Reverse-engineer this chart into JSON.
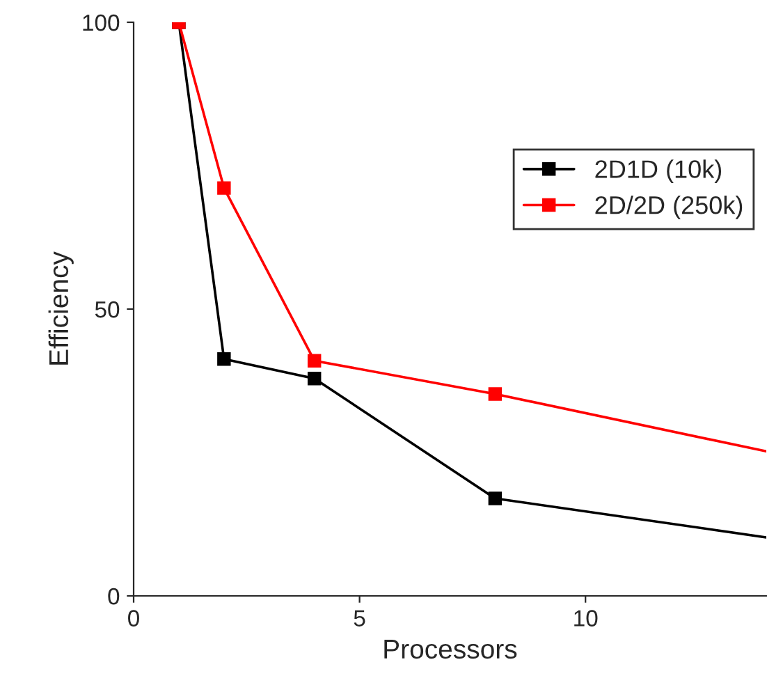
{
  "chart_data": {
    "type": "line",
    "xlabel": "Processors",
    "ylabel": "Efficiency",
    "xlim": [
      0,
      14
    ],
    "xticks": [
      0,
      5,
      10
    ],
    "ylim": [
      0,
      100
    ],
    "yticks": [
      0,
      50,
      100
    ],
    "series": [
      {
        "name": "2D1D (10k)",
        "color": "#000000",
        "x": [
          1,
          2,
          4,
          8,
          14
        ],
        "values": [
          100,
          41.3,
          37.9,
          17,
          10.2
        ]
      },
      {
        "name": "2D/2D (250k)",
        "color": "#ff0000",
        "x": [
          1,
          2,
          4,
          8,
          14
        ],
        "values": [
          100,
          71.1,
          41,
          35.2,
          25.2
        ]
      }
    ],
    "marker": "square",
    "line_style": "solid",
    "legend": "top right",
    "grid": false
  }
}
